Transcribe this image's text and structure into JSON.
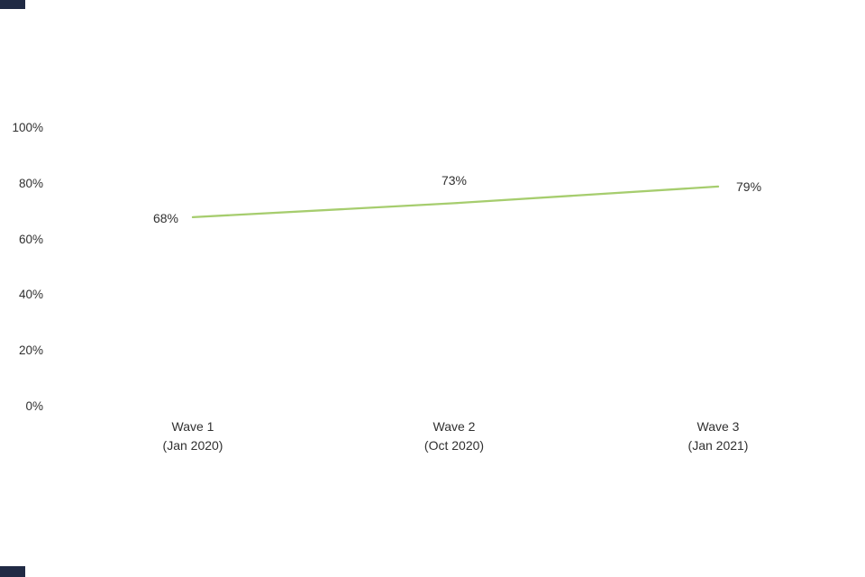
{
  "chart_data": {
    "type": "line",
    "title": "",
    "categories": [
      "Wave 1",
      "Wave 2",
      "Wave 3"
    ],
    "category_sublabels": [
      "(Jan 2020)",
      "(Oct 2020)",
      "(Jan 2021)"
    ],
    "values": [
      68,
      73,
      79
    ],
    "data_labels": [
      "68%",
      "73%",
      "79%"
    ],
    "data_label_positions": [
      "left",
      "above",
      "right"
    ],
    "y_ticks": [
      "100%",
      "80%",
      "60%",
      "40%",
      "20%",
      "0%"
    ],
    "y_tick_values": [
      100,
      80,
      60,
      40,
      20,
      0
    ],
    "ylim": [
      0,
      100
    ],
    "grid": false,
    "axis_lines": false,
    "legend": "none",
    "line_color": "#a6cd6e",
    "text_color": "#303030"
  },
  "decorations": {
    "top_left_bar_color": "#202a44",
    "bottom_left_bar_color": "#202a44"
  }
}
